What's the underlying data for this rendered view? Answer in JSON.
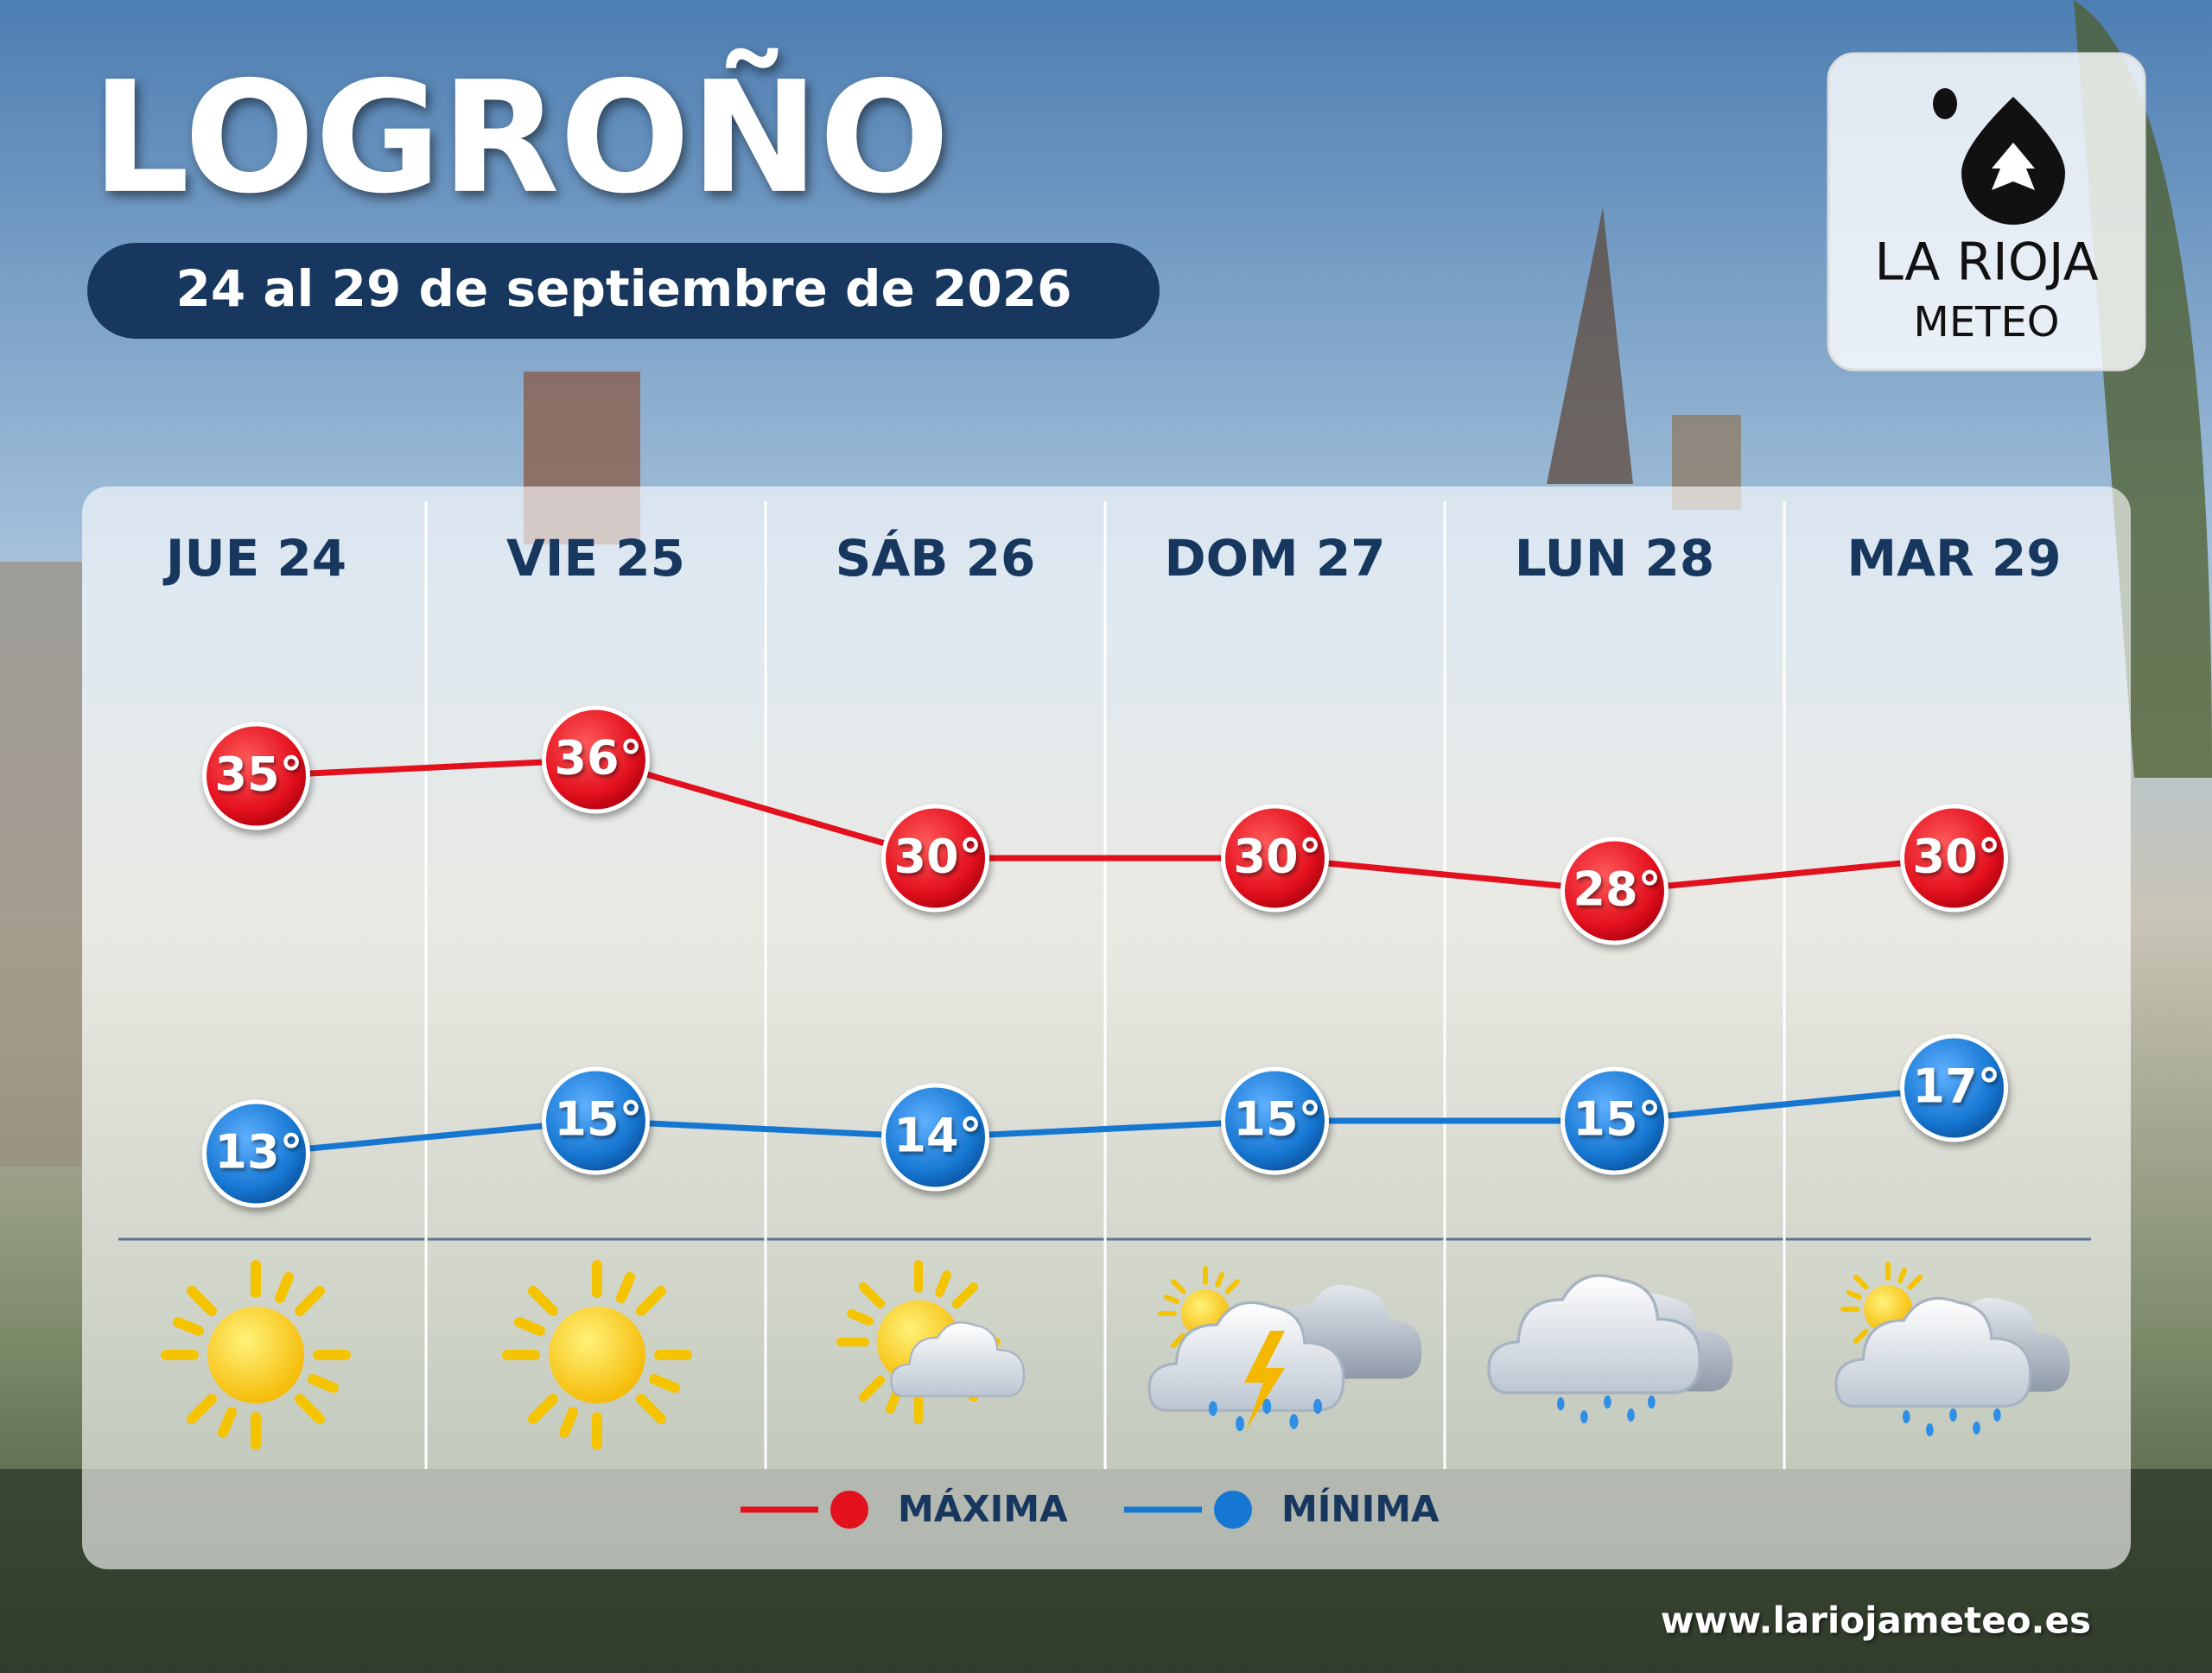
{
  "chart_data": {
    "type": "line",
    "title": "LOGROÑO",
    "subtitle": "24 al 29 de septiembre de 2026",
    "categories": [
      "JUE 24",
      "VIE 25",
      "SÁB 26",
      "DOM 27",
      "LUN 28",
      "MAR 29"
    ],
    "series": [
      {
        "name": "MÁXIMA",
        "color": "#e3101e",
        "values": [
          35,
          36,
          30,
          30,
          28,
          30
        ],
        "value_labels": [
          "35°",
          "36°",
          "30°",
          "30°",
          "28°",
          "30°"
        ]
      },
      {
        "name": "MÍNIMA",
        "color": "#1677d2",
        "values": [
          13,
          15,
          14,
          15,
          15,
          17
        ],
        "value_labels": [
          "13°",
          "15°",
          "14°",
          "15°",
          "15°",
          "17°"
        ]
      }
    ]
  },
  "brand": {
    "name": "LA RIOJA",
    "sub": "METEO",
    "website": "www.lariojameteo.es"
  }
}
